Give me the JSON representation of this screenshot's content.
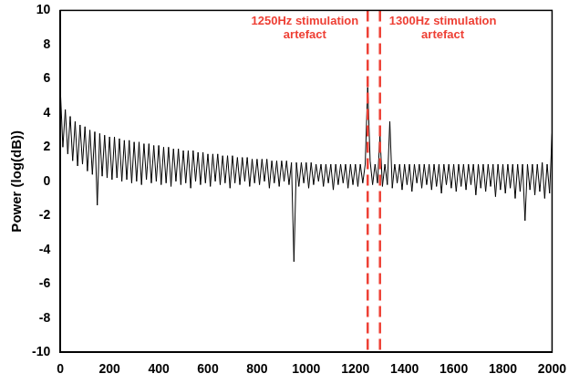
{
  "chart_data": {
    "type": "line",
    "y_label": "Power (log(dB))",
    "xlim": [
      0,
      2000
    ],
    "xticks": [
      0,
      200,
      400,
      600,
      800,
      1000,
      1200,
      1400,
      1600,
      1800,
      2000
    ],
    "ylim": [
      -10,
      10
    ],
    "yticks": [
      -10,
      -8,
      -6,
      -4,
      -2,
      0,
      2,
      4,
      6,
      8,
      10
    ],
    "grid": false,
    "color": "#000000",
    "annotations": [
      {
        "text": "1250Hz stimulation artefact",
        "x": 1250,
        "color": "#ee4035",
        "line_style": "dashed"
      },
      {
        "text": "1300Hz stimulation artefact",
        "x": 1300,
        "color": "#ee4035",
        "line_style": "dashed"
      }
    ],
    "x": [
      0,
      10,
      20,
      30,
      40,
      50,
      60,
      70,
      80,
      90,
      100,
      110,
      120,
      130,
      140,
      150,
      160,
      170,
      180,
      190,
      200,
      210,
      220,
      230,
      240,
      250,
      260,
      270,
      280,
      290,
      300,
      310,
      320,
      330,
      340,
      350,
      360,
      370,
      380,
      390,
      400,
      410,
      420,
      430,
      440,
      450,
      460,
      470,
      480,
      490,
      500,
      510,
      520,
      530,
      540,
      550,
      560,
      570,
      580,
      590,
      600,
      610,
      620,
      630,
      640,
      650,
      660,
      670,
      680,
      690,
      700,
      710,
      720,
      730,
      740,
      750,
      760,
      770,
      780,
      790,
      800,
      810,
      820,
      830,
      840,
      850,
      860,
      870,
      880,
      890,
      900,
      910,
      920,
      930,
      940,
      950,
      960,
      970,
      980,
      990,
      1000,
      1010,
      1020,
      1030,
      1040,
      1050,
      1060,
      1070,
      1080,
      1090,
      1100,
      1110,
      1120,
      1130,
      1140,
      1150,
      1160,
      1170,
      1180,
      1190,
      1200,
      1210,
      1220,
      1230,
      1240,
      1250,
      1260,
      1270,
      1280,
      1290,
      1300,
      1310,
      1320,
      1330,
      1340,
      1350,
      1360,
      1370,
      1380,
      1390,
      1400,
      1410,
      1420,
      1430,
      1440,
      1450,
      1460,
      1470,
      1480,
      1490,
      1500,
      1510,
      1520,
      1530,
      1540,
      1550,
      1560,
      1570,
      1580,
      1590,
      1600,
      1610,
      1620,
      1630,
      1640,
      1650,
      1660,
      1670,
      1680,
      1690,
      1700,
      1710,
      1720,
      1730,
      1740,
      1750,
      1760,
      1770,
      1780,
      1790,
      1800,
      1810,
      1820,
      1830,
      1840,
      1850,
      1860,
      1870,
      1880,
      1890,
      1900,
      1910,
      1920,
      1930,
      1940,
      1950,
      1960,
      1970,
      1980,
      1990,
      2000
    ],
    "values": [
      5.3,
      2.0,
      4.2,
      1.6,
      3.8,
      1.2,
      3.5,
      0.9,
      3.3,
      1.0,
      3.2,
      0.6,
      3.0,
      0.4,
      2.9,
      -1.4,
      2.8,
      0.3,
      2.7,
      0.2,
      2.6,
      0.1,
      2.6,
      0.2,
      2.5,
      0.0,
      2.4,
      0.1,
      2.4,
      -0.1,
      2.3,
      0.0,
      2.3,
      -0.2,
      2.2,
      0.1,
      2.2,
      -0.1,
      2.1,
      0.0,
      2.1,
      -0.2,
      2.0,
      -0.1,
      2.0,
      -0.3,
      1.9,
      0.0,
      1.9,
      -0.2,
      1.8,
      -0.1,
      1.8,
      -0.4,
      1.8,
      0.0,
      1.7,
      -0.2,
      1.7,
      -0.1,
      1.6,
      -0.3,
      1.6,
      0.0,
      1.6,
      -0.2,
      1.5,
      -0.1,
      1.5,
      -0.4,
      1.5,
      -0.1,
      1.4,
      -0.2,
      1.4,
      0.0,
      1.4,
      -0.3,
      1.3,
      -0.1,
      1.3,
      -0.2,
      1.3,
      0.0,
      1.3,
      -0.4,
      1.2,
      -0.1,
      1.2,
      -0.3,
      1.2,
      0.0,
      1.2,
      -0.2,
      1.1,
      -4.7,
      1.1,
      -0.3,
      1.1,
      -0.1,
      1.1,
      -0.4,
      1.1,
      -0.2,
      1.0,
      0.0,
      1.0,
      -0.3,
      1.0,
      -0.1,
      1.0,
      -0.5,
      1.0,
      -0.2,
      1.0,
      -0.1,
      1.0,
      -0.4,
      1.0,
      -0.2,
      1.0,
      -0.3,
      1.0,
      -0.1,
      1.0,
      5.5,
      1.2,
      -0.2,
      1.0,
      -0.1,
      2.7,
      -0.3,
      1.0,
      -0.2,
      3.5,
      -0.4,
      1.0,
      -0.1,
      1.0,
      -0.5,
      1.0,
      -0.2,
      1.0,
      -0.6,
      1.0,
      -0.1,
      1.0,
      -0.4,
      1.0,
      -0.2,
      1.0,
      -0.5,
      1.0,
      -0.3,
      1.0,
      -0.7,
      1.0,
      -0.2,
      1.0,
      -0.4,
      1.0,
      -0.6,
      1.0,
      -0.3,
      1.0,
      -0.5,
      1.0,
      -0.2,
      1.0,
      -0.8,
      1.0,
      -0.4,
      1.0,
      -0.6,
      1.0,
      -0.3,
      1.0,
      -0.9,
      1.0,
      -0.5,
      1.0,
      -0.7,
      1.0,
      -0.4,
      1.0,
      -1.0,
      1.0,
      -0.6,
      1.0,
      -2.3,
      1.0,
      -0.5,
      1.0,
      -0.8,
      1.0,
      -0.6,
      1.1,
      -1.0,
      1.0,
      -0.7,
      2.8
    ]
  }
}
